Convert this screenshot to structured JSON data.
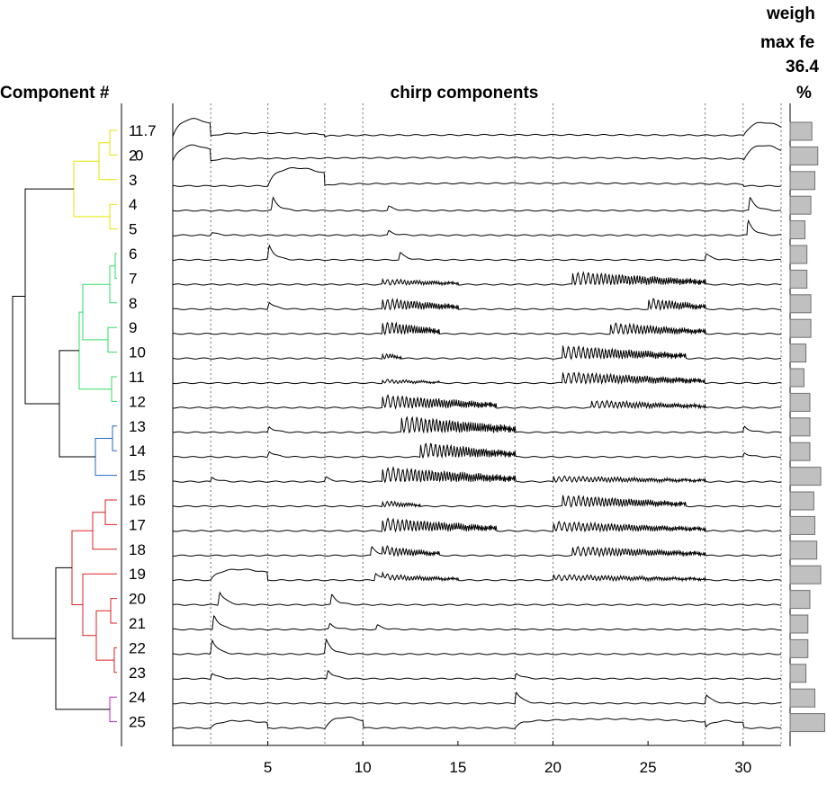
{
  "headers": {
    "left": "Component #",
    "center": "chirp components",
    "right_lines": [
      "weigh",
      "max fe",
      "36.4",
      "%"
    ]
  },
  "chart_data": [
    {
      "type": "dendrogram",
      "title": "Component #",
      "leaves": [
        "1",
        "2",
        "3",
        "4",
        "5",
        "6",
        "7",
        "8",
        "9",
        "10",
        "11",
        "12",
        "13",
        "14",
        "15",
        "16",
        "17",
        "18",
        "19",
        "20",
        "21",
        "22",
        "23",
        "24",
        "25"
      ],
      "overlay_labels": {
        "1": "1.7",
        "2": "0"
      },
      "clusters": [
        {
          "members": [
            "1",
            "2",
            "3",
            "4",
            "5"
          ],
          "color": "#e6e600"
        },
        {
          "members": [
            "6",
            "7",
            "8",
            "9",
            "10",
            "11",
            "12"
          ],
          "color": "#33dd66"
        },
        {
          "members": [
            "13",
            "14",
            "15"
          ],
          "color": "#2266cc"
        },
        {
          "members": [
            "16",
            "17",
            "18",
            "19",
            "20",
            "21",
            "22",
            "23"
          ],
          "color": "#dd2222"
        },
        {
          "members": [
            "24",
            "25"
          ],
          "color": "#bb22cc"
        }
      ]
    },
    {
      "type": "line",
      "title": "chirp components",
      "x_range": [
        0,
        32
      ],
      "x_ticks": [
        5,
        10,
        15,
        20,
        25,
        30
      ],
      "vlines_x": [
        2,
        5,
        8,
        10,
        18,
        20,
        28,
        30,
        32
      ],
      "series": [
        {
          "name": "1",
          "bumps": [
            [
              0,
              2,
              1.0
            ],
            [
              2,
              8,
              0.2
            ],
            [
              8,
              30,
              0.1
            ],
            [
              30,
              32,
              0.8
            ]
          ]
        },
        {
          "name": "2",
          "bumps": [
            [
              0,
              2,
              0.9
            ],
            [
              2,
              30,
              0.2
            ],
            [
              30,
              32,
              0.9
            ]
          ]
        },
        {
          "name": "3",
          "bumps": [
            [
              5,
              8,
              1.0
            ],
            [
              8,
              30,
              0.15
            ]
          ]
        },
        {
          "name": "4",
          "peaks": [
            [
              5.2,
              0.9
            ],
            [
              30.3,
              0.9
            ],
            [
              11.3,
              0.3
            ]
          ]
        },
        {
          "name": "5",
          "peaks": [
            [
              30.2,
              1.0
            ],
            [
              11.3,
              0.3
            ],
            [
              2,
              0.2
            ]
          ]
        },
        {
          "name": "6",
          "peaks": [
            [
              5,
              1.0
            ],
            [
              11.9,
              0.5
            ],
            [
              28,
              0.4
            ]
          ]
        },
        {
          "name": "7",
          "osc": [
            [
              11,
              15,
              0.3
            ],
            [
              21,
              28,
              0.7
            ]
          ]
        },
        {
          "name": "8",
          "peaks": [
            [
              5,
              0.5
            ]
          ],
          "osc": [
            [
              11,
              15,
              0.6
            ],
            [
              25,
              28,
              0.6
            ]
          ]
        },
        {
          "name": "9",
          "osc": [
            [
              11,
              14,
              0.7
            ],
            [
              23,
              28,
              0.6
            ]
          ]
        },
        {
          "name": "10",
          "osc": [
            [
              11,
              12,
              0.3
            ],
            [
              20.5,
              27,
              0.7
            ]
          ]
        },
        {
          "name": "11",
          "osc": [
            [
              11,
              14,
              0.2
            ],
            [
              20.5,
              28,
              0.6
            ]
          ]
        },
        {
          "name": "12",
          "osc": [
            [
              11,
              17,
              0.7
            ],
            [
              22,
              28,
              0.4
            ]
          ]
        },
        {
          "name": "13",
          "peaks": [
            [
              5,
              0.4
            ],
            [
              30,
              0.4
            ]
          ],
          "osc": [
            [
              12,
              18,
              0.9
            ]
          ]
        },
        {
          "name": "14",
          "peaks": [
            [
              5,
              0.4
            ],
            [
              30,
              0.3
            ]
          ],
          "osc": [
            [
              13,
              18,
              0.8
            ]
          ]
        },
        {
          "name": "15",
          "peaks": [
            [
              2,
              0.3
            ],
            [
              8,
              0.3
            ]
          ],
          "osc": [
            [
              11,
              18,
              0.8
            ],
            [
              20,
              28,
              0.3
            ]
          ]
        },
        {
          "name": "16",
          "osc": [
            [
              20.5,
              27,
              0.6
            ],
            [
              11,
              13,
              0.3
            ]
          ]
        },
        {
          "name": "17",
          "osc": [
            [
              11,
              17,
              0.7
            ],
            [
              20,
              28,
              0.5
            ]
          ]
        },
        {
          "name": "18",
          "peaks": [
            [
              10.4,
              0.6
            ]
          ],
          "osc": [
            [
              11,
              14,
              0.5
            ],
            [
              21,
              28,
              0.5
            ]
          ]
        },
        {
          "name": "19",
          "bumps": [
            [
              2,
              5,
              0.6
            ]
          ],
          "peaks": [
            [
              10.6,
              0.5
            ]
          ],
          "osc": [
            [
              11,
              15,
              0.3
            ],
            [
              20,
              28,
              0.3
            ]
          ]
        },
        {
          "name": "20",
          "peaks": [
            [
              2.4,
              0.9
            ],
            [
              8.3,
              0.7
            ]
          ]
        },
        {
          "name": "21",
          "peaks": [
            [
              2.1,
              1.0
            ],
            [
              8.2,
              0.4
            ],
            [
              10.7,
              0.3
            ]
          ]
        },
        {
          "name": "22",
          "peaks": [
            [
              2,
              1.0
            ],
            [
              8,
              1.0
            ]
          ]
        },
        {
          "name": "23",
          "peaks": [
            [
              2,
              0.4
            ],
            [
              8.1,
              0.6
            ],
            [
              18,
              0.4
            ]
          ]
        },
        {
          "name": "24",
          "peaks": [
            [
              18,
              0.8
            ],
            [
              28,
              0.6
            ]
          ]
        },
        {
          "name": "25",
          "bumps": [
            [
              2,
              5,
              0.4
            ],
            [
              8,
              10,
              0.6
            ],
            [
              18,
              28,
              0.5
            ],
            [
              28,
              30,
              0.4
            ]
          ]
        }
      ]
    },
    {
      "type": "bar",
      "orientation": "horizontal",
      "title": "weigh max fe 36.4 %",
      "categories": [
        "1",
        "2",
        "3",
        "4",
        "5",
        "6",
        "7",
        "8",
        "9",
        "10",
        "11",
        "12",
        "13",
        "14",
        "15",
        "16",
        "17",
        "18",
        "19",
        "20",
        "21",
        "22",
        "23",
        "24",
        "25"
      ],
      "values": [
        22,
        28,
        25,
        21,
        15,
        17,
        17,
        21,
        21,
        16,
        14,
        20,
        20,
        20,
        31,
        24,
        25,
        27,
        31,
        20,
        18,
        18,
        16,
        25,
        35
      ],
      "xlim": [
        0,
        36.4
      ]
    }
  ],
  "colors": {
    "line": "#000000",
    "bars": "#c0c0c0",
    "bar_edge": "#707070",
    "grid": "#888888"
  }
}
